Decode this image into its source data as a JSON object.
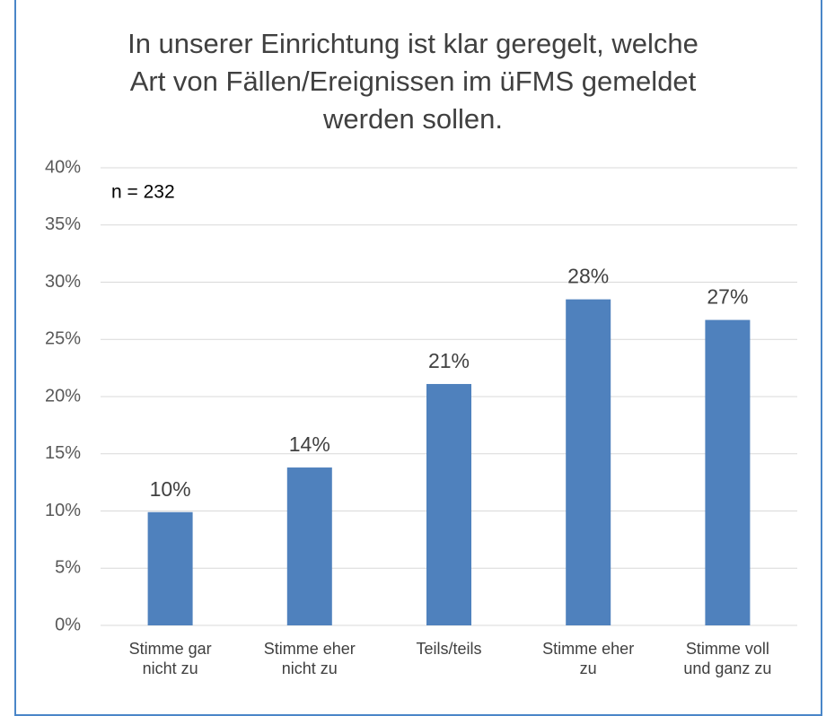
{
  "chart_data": {
    "type": "bar",
    "title": "In unserer Einrichtung ist klar geregelt, welche Art von Fällen/Ereignissen im üFMS gemeldet werden sollen.",
    "annotation": "n = 232",
    "categories": [
      "Stimme gar nicht zu",
      "Stimme eher nicht zu",
      "Teils/teils",
      "Stimme eher zu",
      "Stimme voll und ganz zu"
    ],
    "values": [
      9.9,
      13.8,
      21.1,
      28.5,
      26.7
    ],
    "value_labels": [
      "10%",
      "14%",
      "21%",
      "28%",
      "27%"
    ],
    "color": "#4f81bd",
    "ylim": [
      0,
      40
    ],
    "yticks": [
      {
        "value": 0,
        "label": "0%"
      },
      {
        "value": 5,
        "label": "5%"
      },
      {
        "value": 10,
        "label": "10%"
      },
      {
        "value": 15,
        "label": "15%"
      },
      {
        "value": 20,
        "label": "20%"
      },
      {
        "value": 25,
        "label": "25%"
      },
      {
        "value": 30,
        "label": "30%"
      },
      {
        "value": 35,
        "label": "35%"
      },
      {
        "value": 40,
        "label": "40%"
      }
    ],
    "grid": true
  }
}
